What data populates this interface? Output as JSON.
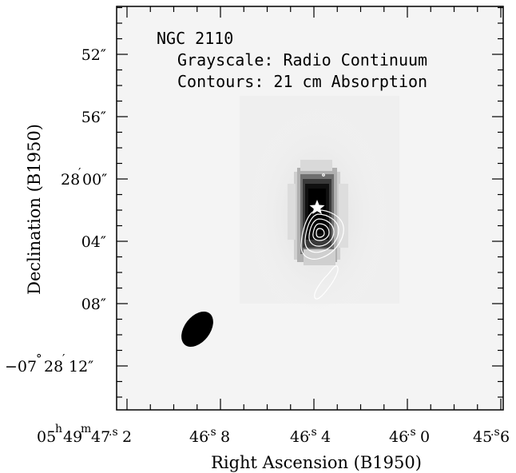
{
  "chart_data": {
    "type": "heatmap",
    "annotation": {
      "line1": "NGC 2110",
      "line2": "Grayscale: Radio Continuum",
      "line3": "Contours: 21 cm Absorption"
    },
    "xlabel": "Right Ascension (B1950)",
    "ylabel": "Declination (B1950)",
    "x_ticks": [
      {
        "value_s": 47.2,
        "label": [
          "05",
          "h",
          "49",
          "m",
          "47",
          ".s",
          "2"
        ]
      },
      {
        "value_s": 46.8,
        "label": [
          "46",
          ".s",
          "8"
        ]
      },
      {
        "value_s": 46.4,
        "label": [
          "46",
          ".s",
          "4"
        ]
      },
      {
        "value_s": 46.0,
        "label": [
          "46",
          ".s",
          "0"
        ]
      },
      {
        "value_s": 45.6,
        "label": [
          "45",
          ".s",
          "6"
        ]
      }
    ],
    "y_ticks": [
      {
        "value_arcsec": -52,
        "label": "52″"
      },
      {
        "value_arcsec": -56,
        "label": "56″"
      },
      {
        "value_arcsec": -60,
        "label": "′"
      },
      {
        "value_arcsec": -64,
        "label": "04″"
      },
      {
        "value_arcsec": -68,
        "label": "08″"
      },
      {
        "value_arcsec": -72,
        "label": "′"
      }
    ],
    "y_special": {
      "t28_label": "28",
      "t00_label": "00″",
      "tneg_label": "−07",
      "tdeg_label": "°",
      "t28b_label": "28",
      "t12_label": "12″"
    },
    "xlim_s": [
      47.35,
      45.55
    ],
    "ylim_arcsec": [
      -48,
      -78
    ],
    "grayscale_core": {
      "ra_s": 46.39,
      "dec_arcsec": -60.8,
      "sigma_ra_s": 0.045,
      "sigma_dec_arcsec": 2.4
    },
    "nucleus_star": {
      "ra_s": 46.39,
      "dec_arcsec": -61.8
    },
    "beam": {
      "ra_s": 46.86,
      "dec_arcsec": -71.0
    },
    "contour_color": "#ffffff",
    "beam_color": "#000000"
  }
}
